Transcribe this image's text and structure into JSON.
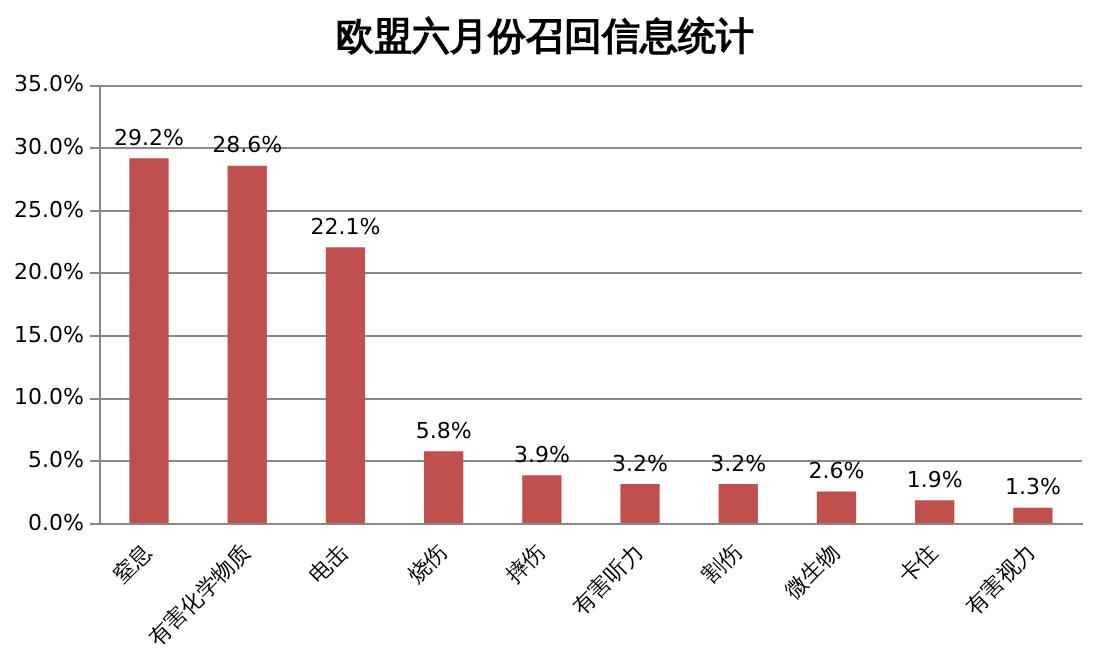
{
  "chart_data": {
    "type": "bar",
    "title": "欧盟六月份召回信息统计",
    "categories": [
      "窒息",
      "有害化学物质",
      "电击",
      "烧伤",
      "摔伤",
      "有害听力",
      "割伤",
      "微生物",
      "卡住",
      "有害视力"
    ],
    "values": [
      29.2,
      28.6,
      22.1,
      5.8,
      3.9,
      3.2,
      3.2,
      2.6,
      1.9,
      1.3
    ],
    "value_labels": [
      "29.2%",
      "28.6%",
      "22.1%",
      "5.8%",
      "3.9%",
      "3.2%",
      "3.2%",
      "2.6%",
      "1.9%",
      "1.3%"
    ],
    "color": "#c0504d",
    "ylim": [
      0,
      35
    ],
    "yticks": [
      {
        "value": 0,
        "label": "0.0%"
      },
      {
        "value": 5,
        "label": "5.0%"
      },
      {
        "value": 10,
        "label": "10.0%"
      },
      {
        "value": 15,
        "label": "15.0%"
      },
      {
        "value": 20,
        "label": "20.0%"
      },
      {
        "value": 25,
        "label": "25.0%"
      },
      {
        "value": 30,
        "label": "30.0%"
      },
      {
        "value": 35,
        "label": "35.0%"
      }
    ],
    "grid": "y",
    "legend": false
  }
}
